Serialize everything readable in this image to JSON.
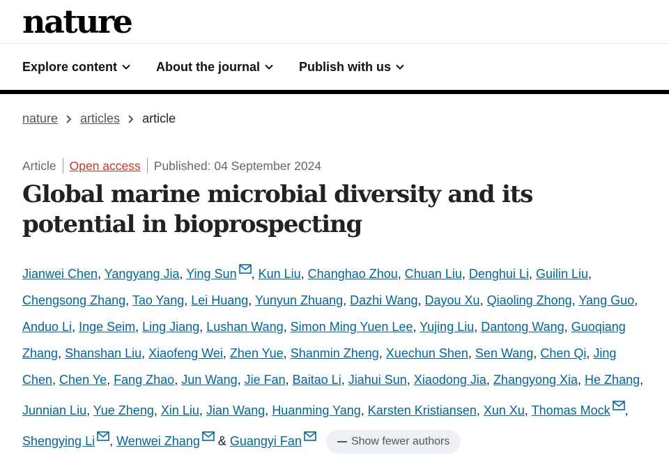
{
  "brand": {
    "logo": "nature"
  },
  "nav": {
    "items": [
      "Explore content",
      "About the journal",
      "Publish with us"
    ]
  },
  "breadcrumb": {
    "items": [
      "nature",
      "articles"
    ],
    "current": "article"
  },
  "meta": {
    "type": "Article",
    "access": "Open access",
    "published": "Published: 04 September 2024"
  },
  "title": "Global marine microbial diversity and its potential in bioprospecting",
  "authors": [
    {
      "name": "Jianwei Chen"
    },
    {
      "name": "Yangyang Jia"
    },
    {
      "name": "Ying Sun",
      "mail": true
    },
    {
      "name": "Kun Liu"
    },
    {
      "name": "Changhao Zhou"
    },
    {
      "name": "Chuan Liu"
    },
    {
      "name": "Denghui Li"
    },
    {
      "name": "Guilin Liu"
    },
    {
      "name": "Chengsong Zhang"
    },
    {
      "name": "Tao Yang"
    },
    {
      "name": "Lei Huang"
    },
    {
      "name": "Yunyun Zhuang"
    },
    {
      "name": "Dazhi Wang"
    },
    {
      "name": "Dayou Xu"
    },
    {
      "name": "Qiaoling Zhong"
    },
    {
      "name": "Yang Guo"
    },
    {
      "name": "Anduo Li"
    },
    {
      "name": "Inge Seim"
    },
    {
      "name": "Ling Jiang"
    },
    {
      "name": "Lushan Wang"
    },
    {
      "name": "Simon Ming Yuen Lee"
    },
    {
      "name": "Yujing Liu"
    },
    {
      "name": "Dantong Wang"
    },
    {
      "name": "Guoqiang Zhang"
    },
    {
      "name": "Shanshan Liu"
    },
    {
      "name": "Xiaofeng Wei"
    },
    {
      "name": "Zhen Yue"
    },
    {
      "name": "Shanmin Zheng"
    },
    {
      "name": "Xuechun Shen"
    },
    {
      "name": "Sen Wang"
    },
    {
      "name": "Chen Qi"
    },
    {
      "name": "Jing Chen"
    },
    {
      "name": "Chen Ye"
    },
    {
      "name": "Fang Zhao"
    },
    {
      "name": "Jun Wang"
    },
    {
      "name": "Jie Fan"
    },
    {
      "name": "Baitao Li"
    },
    {
      "name": "Jiahui Sun"
    },
    {
      "name": "Xiaodong Jia"
    },
    {
      "name": "Zhangyong Xia"
    },
    {
      "name": "He Zhang"
    },
    {
      "name": "Junnian Liu"
    },
    {
      "name": "Yue Zheng"
    },
    {
      "name": "Xin Liu"
    },
    {
      "name": "Jian Wang"
    },
    {
      "name": "Huanming Yang"
    },
    {
      "name": "Karsten Kristiansen"
    },
    {
      "name": "Xun Xu"
    },
    {
      "name": "Thomas Mock",
      "mail": true
    },
    {
      "name": "Shengying Li",
      "mail": true
    },
    {
      "name": "Wenwei Zhang",
      "mail": true
    },
    {
      "name": "Guangyi Fan",
      "mail": true
    }
  ],
  "authors_conjunction": "&",
  "show_fewer_label": "Show fewer authors",
  "colors": {
    "link": "#006699",
    "open_access": "#c0392b",
    "text": "#222222"
  }
}
